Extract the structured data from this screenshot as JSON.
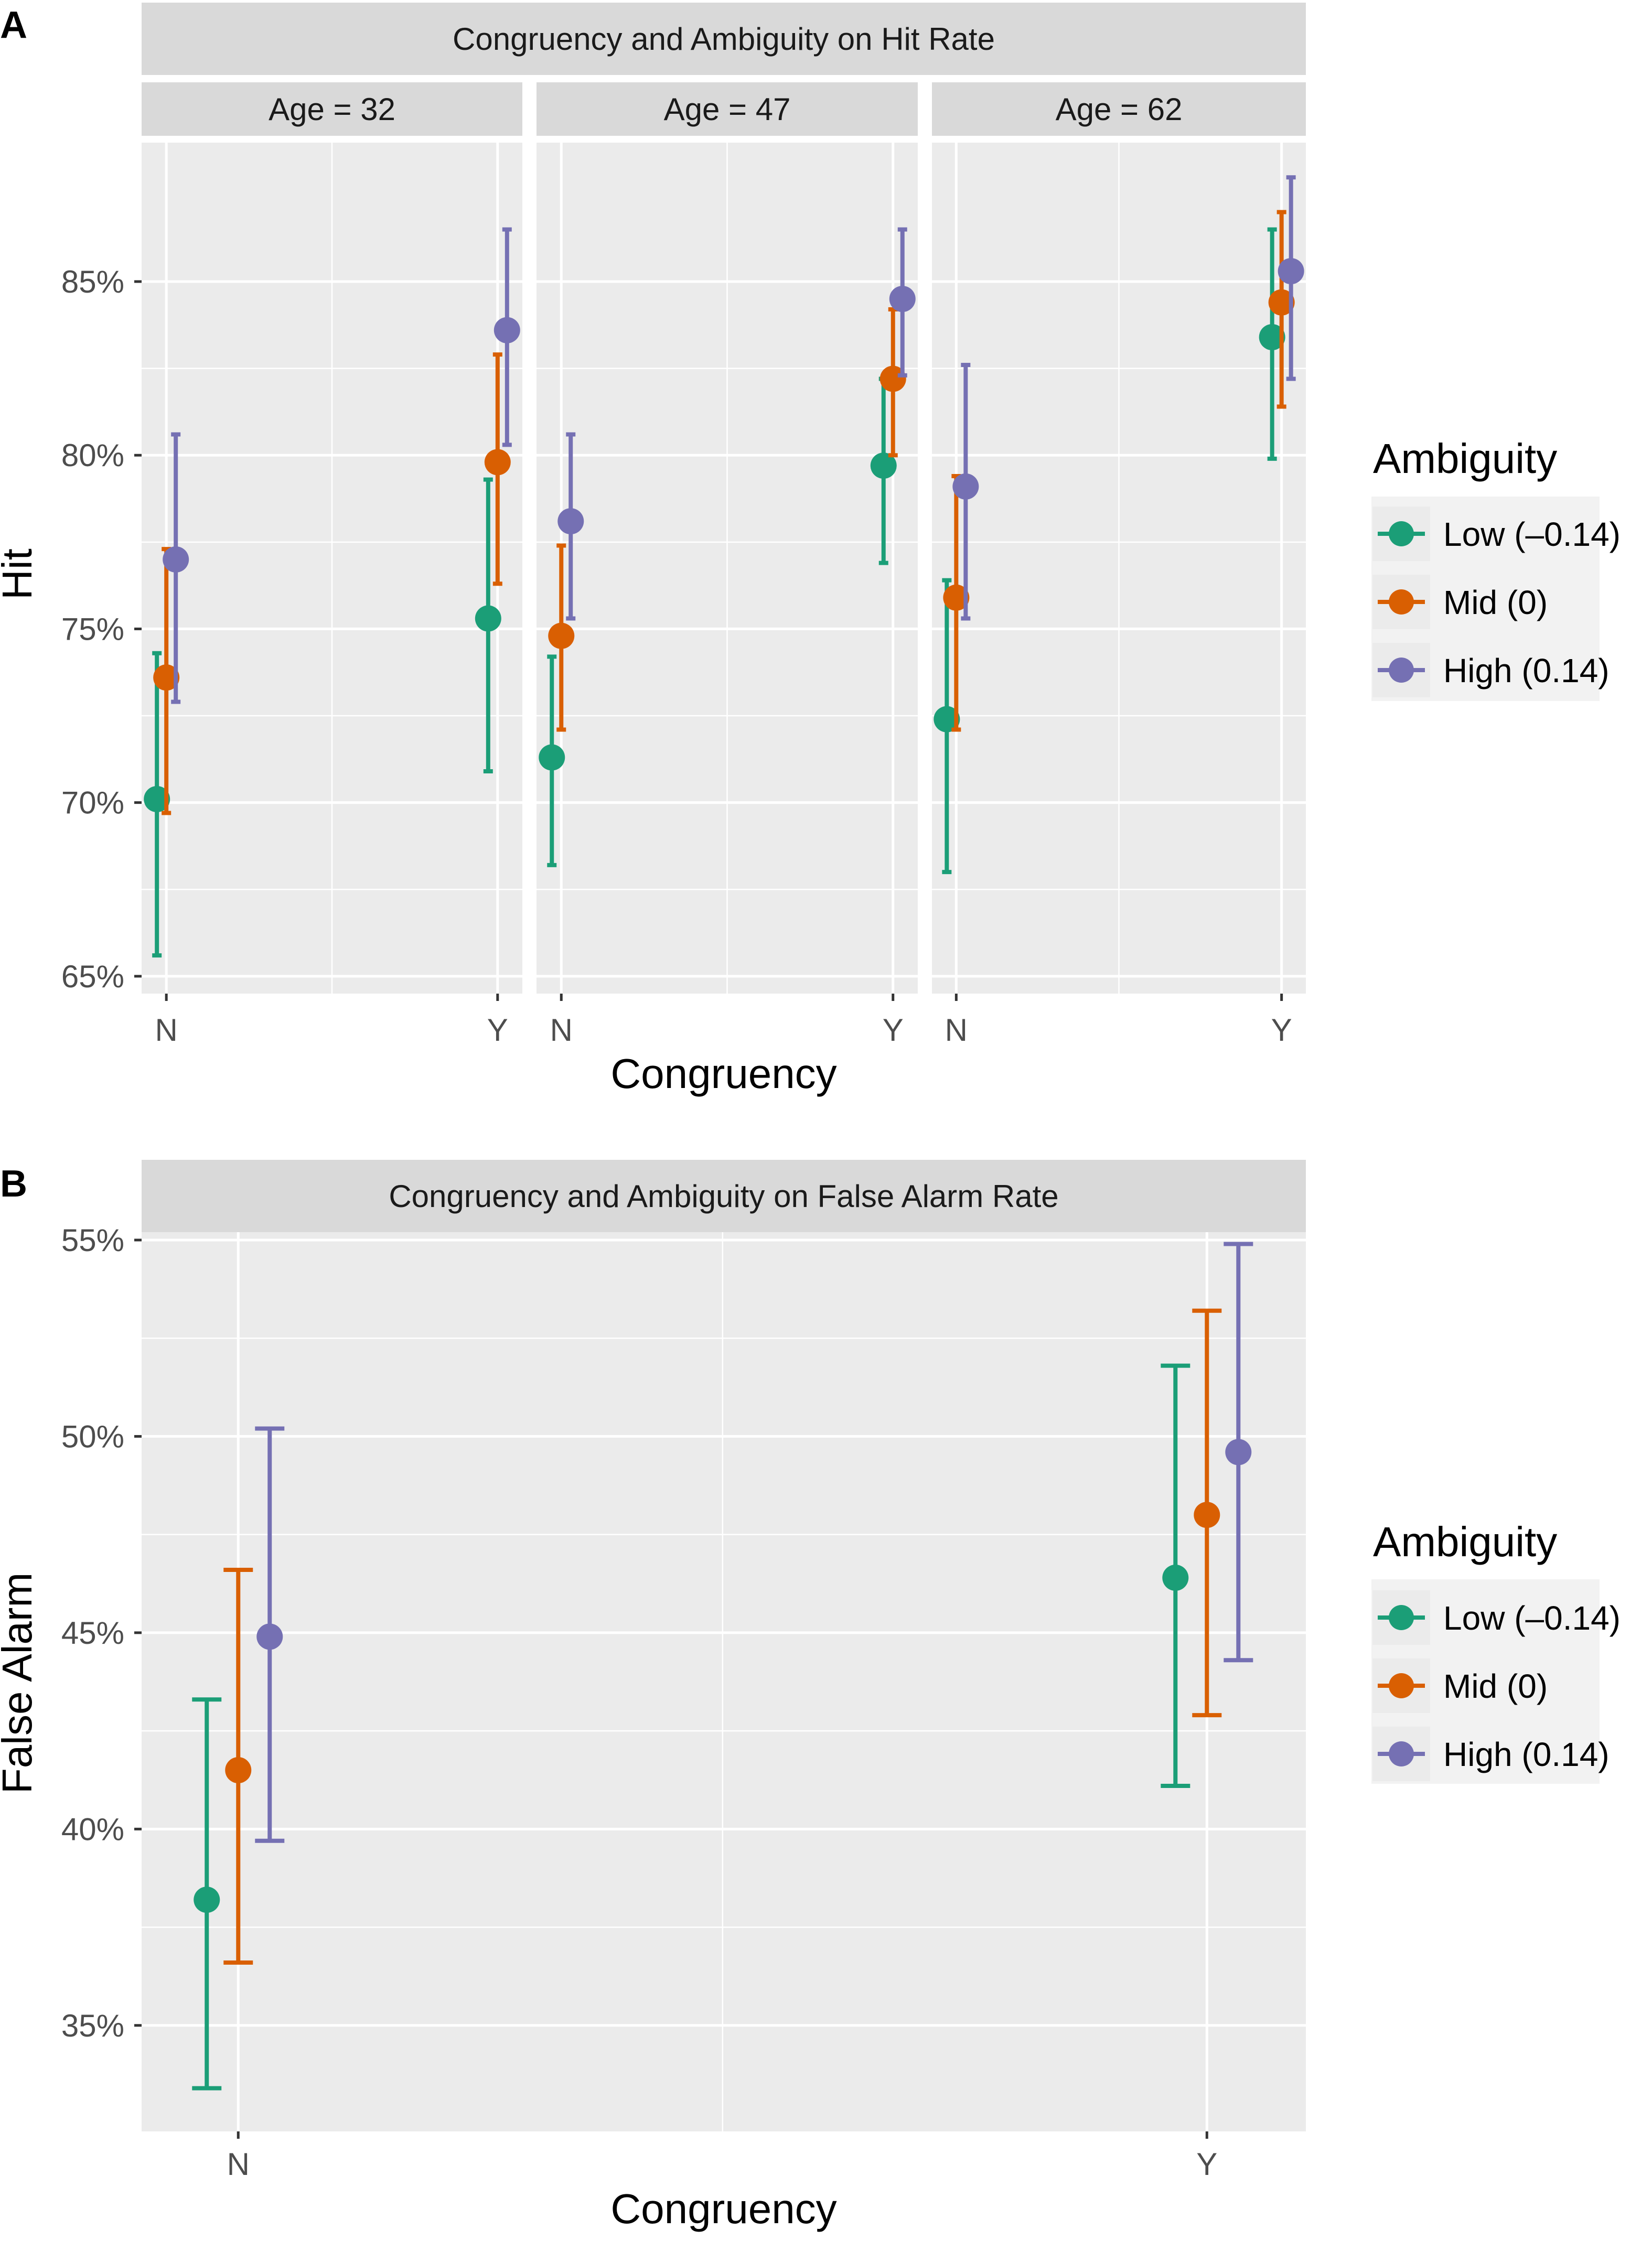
{
  "chart_data": [
    {
      "type": "scatter",
      "panel_tag": "A",
      "title": "Congruency and Ambiguity on Hit Rate",
      "xlabel": "Congruency",
      "ylabel": "Hit",
      "ylim": [
        64.5,
        89
      ],
      "y_ticks": [
        65,
        70,
        75,
        80,
        85
      ],
      "y_tick_labels": [
        "65%",
        "70%",
        "75%",
        "80%",
        "85%"
      ],
      "categories": [
        "N",
        "Y"
      ],
      "legend": {
        "title": "Ambiguity",
        "position": "right",
        "entries": [
          {
            "label": "Low (–0.14)",
            "color": "#1b9e77"
          },
          {
            "label": "Mid (0)",
            "color": "#d95f02"
          },
          {
            "label": "High (0.14)",
            "color": "#7570b3"
          }
        ]
      },
      "facets": [
        {
          "label": "Age = 32",
          "series": [
            {
              "name": "Low (–0.14)",
              "color": "#1b9e77",
              "points": [
                {
                  "x": "N",
                  "y": 70.1,
                  "lo": 65.6,
                  "hi": 74.3
                },
                {
                  "x": "Y",
                  "y": 75.3,
                  "lo": 70.9,
                  "hi": 79.3
                }
              ]
            },
            {
              "name": "Mid (0)",
              "color": "#d95f02",
              "points": [
                {
                  "x": "N",
                  "y": 73.6,
                  "lo": 69.7,
                  "hi": 77.3
                },
                {
                  "x": "Y",
                  "y": 79.8,
                  "lo": 76.3,
                  "hi": 82.9
                }
              ]
            },
            {
              "name": "High (0.14)",
              "color": "#7570b3",
              "points": [
                {
                  "x": "N",
                  "y": 77.0,
                  "lo": 72.9,
                  "hi": 80.6
                },
                {
                  "x": "Y",
                  "y": 83.6,
                  "lo": 80.3,
                  "hi": 86.5
                }
              ]
            }
          ]
        },
        {
          "label": "Age = 47",
          "series": [
            {
              "name": "Low (–0.14)",
              "color": "#1b9e77",
              "points": [
                {
                  "x": "N",
                  "y": 71.3,
                  "lo": 68.2,
                  "hi": 74.2
                },
                {
                  "x": "Y",
                  "y": 79.7,
                  "lo": 76.9,
                  "hi": 82.2
                }
              ]
            },
            {
              "name": "Mid (0)",
              "color": "#d95f02",
              "points": [
                {
                  "x": "N",
                  "y": 74.8,
                  "lo": 72.1,
                  "hi": 77.4
                },
                {
                  "x": "Y",
                  "y": 82.2,
                  "lo": 80.0,
                  "hi": 84.2
                }
              ]
            },
            {
              "name": "High (0.14)",
              "color": "#7570b3",
              "points": [
                {
                  "x": "N",
                  "y": 78.1,
                  "lo": 75.3,
                  "hi": 80.6
                },
                {
                  "x": "Y",
                  "y": 84.5,
                  "lo": 82.3,
                  "hi": 86.5
                }
              ]
            }
          ]
        },
        {
          "label": "Age = 62",
          "series": [
            {
              "name": "Low (–0.14)",
              "color": "#1b9e77",
              "points": [
                {
                  "x": "N",
                  "y": 72.4,
                  "lo": 68.0,
                  "hi": 76.4
                },
                {
                  "x": "Y",
                  "y": 83.4,
                  "lo": 79.9,
                  "hi": 86.5
                }
              ]
            },
            {
              "name": "Mid (0)",
              "color": "#d95f02",
              "points": [
                {
                  "x": "N",
                  "y": 75.9,
                  "lo": 72.1,
                  "hi": 79.4
                },
                {
                  "x": "Y",
                  "y": 84.4,
                  "lo": 81.4,
                  "hi": 87.0
                }
              ]
            },
            {
              "name": "High (0.14)",
              "color": "#7570b3",
              "points": [
                {
                  "x": "N",
                  "y": 79.1,
                  "lo": 75.3,
                  "hi": 82.6
                },
                {
                  "x": "Y",
                  "y": 85.3,
                  "lo": 82.2,
                  "hi": 88.0
                }
              ]
            }
          ]
        }
      ]
    },
    {
      "type": "scatter",
      "panel_tag": "B",
      "title": "Congruency and Ambiguity on False Alarm Rate",
      "xlabel": "Congruency",
      "ylabel": "False Alarm",
      "ylim": [
        32.3,
        55.2
      ],
      "y_ticks": [
        35,
        40,
        45,
        50,
        55
      ],
      "y_tick_labels": [
        "35%",
        "40%",
        "45%",
        "50%",
        "55%"
      ],
      "categories": [
        "N",
        "Y"
      ],
      "legend": {
        "title": "Ambiguity",
        "position": "right",
        "entries": [
          {
            "label": "Low (–0.14)",
            "color": "#1b9e77"
          },
          {
            "label": "Mid (0)",
            "color": "#d95f02"
          },
          {
            "label": "High (0.14)",
            "color": "#7570b3"
          }
        ]
      },
      "facets": [
        {
          "label": "",
          "series": [
            {
              "name": "Low (–0.14)",
              "color": "#1b9e77",
              "points": [
                {
                  "x": "N",
                  "y": 38.2,
                  "lo": 33.4,
                  "hi": 43.3
                },
                {
                  "x": "Y",
                  "y": 46.4,
                  "lo": 41.1,
                  "hi": 51.8
                }
              ]
            },
            {
              "name": "Mid (0)",
              "color": "#d95f02",
              "points": [
                {
                  "x": "N",
                  "y": 41.5,
                  "lo": 36.6,
                  "hi": 46.6
                },
                {
                  "x": "Y",
                  "y": 48.0,
                  "lo": 42.9,
                  "hi": 53.2
                }
              ]
            },
            {
              "name": "High (0.14)",
              "color": "#7570b3",
              "points": [
                {
                  "x": "N",
                  "y": 44.9,
                  "lo": 39.7,
                  "hi": 50.2
                },
                {
                  "x": "Y",
                  "y": 49.6,
                  "lo": 44.3,
                  "hi": 54.9
                }
              ]
            }
          ]
        }
      ]
    }
  ]
}
